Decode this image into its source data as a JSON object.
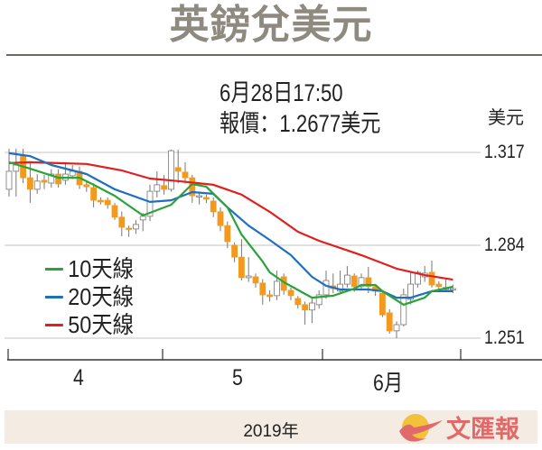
{
  "title": "英鎊兌美元",
  "info": {
    "datetime": "6月28日17:50",
    "quote": "報價：1.2677美元"
  },
  "footer": {
    "year": "2019年",
    "logo_text": "文匯報"
  },
  "colors": {
    "up": "#ffffff",
    "down": "#f39a1e",
    "ma10": "#2aa43a",
    "ma20": "#1f6fc0",
    "ma50": "#e31e1e",
    "title": "#8f8a80",
    "footer_bg": "#f4ebe3"
  },
  "chart_data": {
    "type": "candlestick",
    "title": "英鎊兌美元",
    "ylabel": "美元",
    "ylim": [
      1.2485,
      1.3235
    ],
    "yticks": [
      1.317,
      1.284,
      1.251
    ],
    "ytick_labels": [
      "1.317",
      "1.284",
      "1.251"
    ],
    "xtick_labels": [
      "4",
      "5",
      "6月"
    ],
    "grid": true,
    "legend_placement": "bottom-left",
    "legend": [
      {
        "key": "ma10",
        "label": "10天線"
      },
      {
        "key": "ma20",
        "label": "20天線"
      },
      {
        "key": "ma50",
        "label": "50天線"
      }
    ],
    "candles_ohlc": [
      [
        1.3039,
        1.3183,
        1.3013,
        1.3103
      ],
      [
        1.3103,
        1.3183,
        1.3013,
        1.3125
      ],
      [
        1.316,
        1.3183,
        1.3061,
        1.308
      ],
      [
        1.308,
        1.3135,
        1.2991,
        1.3039
      ],
      [
        1.3039,
        1.3093,
        1.3023,
        1.3068
      ],
      [
        1.3071,
        1.309,
        1.304,
        1.3064
      ],
      [
        1.3061,
        1.311,
        1.3045,
        1.3093
      ],
      [
        1.3093,
        1.311,
        1.3045,
        1.3058
      ],
      [
        1.3071,
        1.3135,
        1.3055,
        1.3093
      ],
      [
        1.3087,
        1.3125,
        1.3075,
        1.3103
      ],
      [
        1.3103,
        1.312,
        1.304,
        1.3055
      ],
      [
        1.3055,
        1.3065,
        1.303,
        1.3048
      ],
      [
        1.3045,
        1.306,
        1.2975,
        1.3
      ],
      [
        1.3,
        1.301,
        1.2985,
        1.2994
      ],
      [
        1.3,
        1.301,
        1.297,
        1.2984
      ],
      [
        1.2981,
        1.299,
        1.293,
        1.294
      ],
      [
        1.294,
        1.296,
        1.2872,
        1.2904
      ],
      [
        1.2901,
        1.291,
        1.287,
        1.2898
      ],
      [
        1.2898,
        1.293,
        1.288,
        1.2914
      ],
      [
        1.293,
        1.2955,
        1.289,
        1.2943
      ],
      [
        1.2943,
        1.3055,
        1.2926,
        1.3032
      ],
      [
        1.3032,
        1.3103,
        1.301,
        1.3055
      ],
      [
        1.3052,
        1.309,
        1.302,
        1.3039
      ],
      [
        1.3039,
        1.318,
        1.303,
        1.3176
      ],
      [
        1.3116,
        1.318,
        1.306,
        1.3103
      ],
      [
        1.31,
        1.3135,
        1.306,
        1.308
      ],
      [
        1.308,
        1.309,
        1.2991,
        1.3016
      ],
      [
        1.3013,
        1.303,
        1.2985,
        1.3016
      ],
      [
        1.301,
        1.302,
        1.299,
        1.3004
      ],
      [
        1.2997,
        1.301,
        1.294,
        1.2959
      ],
      [
        1.2959,
        1.2975,
        1.289,
        1.291
      ],
      [
        1.291,
        1.2925,
        1.283,
        1.2853
      ],
      [
        1.284,
        1.285,
        1.278,
        1.2798
      ],
      [
        1.2798,
        1.2862,
        1.2715,
        1.2725
      ],
      [
        1.2725,
        1.2798,
        1.271,
        1.2731
      ],
      [
        1.2728,
        1.274,
        1.269,
        1.2706
      ],
      [
        1.2706,
        1.272,
        1.2629,
        1.2664
      ],
      [
        1.2664,
        1.268,
        1.264,
        1.2658
      ],
      [
        1.2661,
        1.275,
        1.2645,
        1.2712
      ],
      [
        1.2728,
        1.274,
        1.2665,
        1.268
      ],
      [
        1.268,
        1.269,
        1.2645,
        1.2661
      ],
      [
        1.2651,
        1.266,
        1.2615,
        1.2629
      ],
      [
        1.2629,
        1.264,
        1.2558,
        1.261
      ],
      [
        1.261,
        1.265,
        1.2564,
        1.2635
      ],
      [
        1.2629,
        1.268,
        1.2615,
        1.2664
      ],
      [
        1.2664,
        1.275,
        1.265,
        1.2715
      ],
      [
        1.2696,
        1.274,
        1.267,
        1.2686
      ],
      [
        1.2677,
        1.275,
        1.2665,
        1.2702
      ],
      [
        1.2702,
        1.2766,
        1.269,
        1.2734
      ],
      [
        1.2731,
        1.274,
        1.2675,
        1.2693
      ],
      [
        1.2693,
        1.274,
        1.268,
        1.2725
      ],
      [
        1.2725,
        1.2763,
        1.267,
        1.2693
      ],
      [
        1.2693,
        1.27,
        1.266,
        1.2677
      ],
      [
        1.267,
        1.268,
        1.2585,
        1.2593
      ],
      [
        1.26,
        1.2613,
        1.2526,
        1.2536
      ],
      [
        1.2536,
        1.257,
        1.251,
        1.2558
      ],
      [
        1.2558,
        1.2686,
        1.2552,
        1.2664
      ],
      [
        1.2648,
        1.2744,
        1.263,
        1.2702
      ],
      [
        1.2702,
        1.275,
        1.269,
        1.2744
      ],
      [
        1.2728,
        1.2766,
        1.271,
        1.2741
      ],
      [
        1.2744,
        1.2786,
        1.269,
        1.2699
      ],
      [
        1.2702,
        1.2712,
        1.2675,
        1.2693
      ],
      [
        1.2683,
        1.2725,
        1.2675,
        1.269
      ],
      [
        1.2683,
        1.27,
        1.267,
        1.2686
      ]
    ],
    "month_start_index": {
      "4": 0,
      "5": 22,
      "6月": 44
    },
    "series": {
      "ma10": [
        [
          0,
          1.3135
        ],
        [
          3,
          1.3112
        ],
        [
          7,
          1.308
        ],
        [
          10,
          1.308
        ],
        [
          12,
          1.3055
        ],
        [
          15,
          1.3016
        ],
        [
          19,
          1.2946
        ],
        [
          23,
          1.2984
        ],
        [
          26,
          1.3058
        ],
        [
          28,
          1.3048
        ],
        [
          31,
          1.2975
        ],
        [
          33,
          1.2878
        ],
        [
          36,
          1.2782
        ],
        [
          37,
          1.2744
        ],
        [
          39,
          1.2709
        ],
        [
          43,
          1.2654
        ],
        [
          46,
          1.2661
        ],
        [
          49,
          1.2686
        ],
        [
          50,
          1.2699
        ],
        [
          52,
          1.2699
        ],
        [
          53,
          1.2677
        ],
        [
          56,
          1.2629
        ],
        [
          59,
          1.2654
        ],
        [
          60,
          1.2677
        ],
        [
          63,
          1.2693
        ]
      ],
      "ma20": [
        [
          0,
          1.3167
        ],
        [
          3,
          1.3157
        ],
        [
          6,
          1.3125
        ],
        [
          11,
          1.3093
        ],
        [
          15,
          1.3039
        ],
        [
          20,
          1.2994
        ],
        [
          23,
          1.3
        ],
        [
          26,
          1.3029
        ],
        [
          29,
          1.3023
        ],
        [
          31,
          1.2975
        ],
        [
          34,
          1.291
        ],
        [
          37,
          1.2859
        ],
        [
          40,
          1.2805
        ],
        [
          43,
          1.2728
        ],
        [
          45,
          1.2696
        ],
        [
          47,
          1.2683
        ],
        [
          51,
          1.2683
        ],
        [
          53,
          1.2677
        ],
        [
          55,
          1.2654
        ],
        [
          57,
          1.2654
        ],
        [
          60,
          1.2677
        ],
        [
          63,
          1.2677
        ]
      ],
      "ma50": [
        [
          0,
          1.3132
        ],
        [
          3,
          1.3135
        ],
        [
          7,
          1.3132
        ],
        [
          11,
          1.3129
        ],
        [
          16,
          1.3106
        ],
        [
          20,
          1.3077
        ],
        [
          24,
          1.3068
        ],
        [
          29,
          1.3055
        ],
        [
          33,
          1.302
        ],
        [
          37,
          1.2959
        ],
        [
          41,
          1.2888
        ],
        [
          44,
          1.2856
        ],
        [
          50,
          1.2805
        ],
        [
          55,
          1.2757
        ],
        [
          59,
          1.2734
        ],
        [
          63,
          1.2718
        ]
      ]
    }
  }
}
